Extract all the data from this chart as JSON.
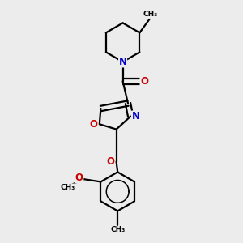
{
  "bg_color": "#ececec",
  "bond_color": "#000000",
  "N_color": "#0000cc",
  "O_color": "#cc0000",
  "line_width": 1.6,
  "font_size": 8.5,
  "figsize": [
    3.0,
    3.0
  ],
  "dpi": 100,
  "xlim": [
    0.25,
    0.85
  ],
  "ylim": [
    0.04,
    0.96
  ]
}
